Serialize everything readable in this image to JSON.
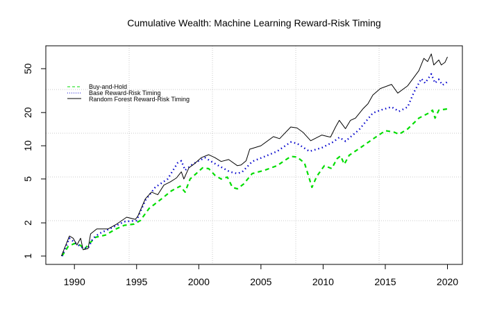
{
  "chart_data": {
    "type": "line",
    "title": "Cumulative Wealth: Machine Learning Reward-Risk Timing",
    "xlabel": "",
    "ylabel": "",
    "xlim": [
      1987.7,
      2021.2
    ],
    "ylim": [
      0.84,
      80.6
    ],
    "y_scale": "log",
    "x_ticks": [
      1990,
      1995,
      2000,
      2005,
      2010,
      2015,
      2020
    ],
    "y_ticks": [
      1,
      2,
      5,
      10,
      20,
      50
    ],
    "grid": true,
    "legend_position": "top-left",
    "series": [
      {
        "name": "Buy-and-Hold",
        "color": "#00dd00",
        "style": "dashed",
        "x": [
          1989.0,
          1989.5,
          1990.0,
          1990.5,
          1990.8,
          1991.2,
          1991.7,
          1992.5,
          1993.3,
          1994.0,
          1994.8,
          1995.3,
          1996.0,
          1997.0,
          1997.8,
          1998.5,
          1998.9,
          1999.3,
          1999.8,
          2000.3,
          2000.8,
          2001.3,
          2001.8,
          2002.3,
          2002.7,
          2003.1,
          2003.6,
          2004.3,
          2005.3,
          2006.3,
          2007.4,
          2007.9,
          2008.5,
          2008.9,
          2009.1,
          2009.5,
          2010.1,
          2010.7,
          2011.1,
          2011.4,
          2011.7,
          2012.1,
          2013.0,
          2014.0,
          2015.0,
          2015.7,
          2016.1,
          2016.8,
          2017.7,
          2018.5,
          2018.8,
          2019.0,
          2019.3,
          2020.0
        ],
        "y": [
          1.0,
          1.22,
          1.3,
          1.25,
          1.15,
          1.3,
          1.48,
          1.55,
          1.75,
          1.9,
          1.95,
          2.1,
          2.7,
          3.3,
          3.9,
          4.3,
          3.8,
          5.0,
          5.6,
          6.3,
          6.2,
          5.4,
          5.0,
          5.2,
          4.2,
          4.07,
          4.5,
          5.6,
          6.0,
          6.6,
          8.0,
          7.9,
          7.0,
          5.0,
          4.2,
          5.3,
          6.6,
          6.2,
          7.6,
          8.1,
          6.8,
          8.2,
          9.6,
          11.5,
          13.7,
          13.3,
          12.7,
          14.2,
          17.8,
          19.8,
          21.0,
          17.8,
          21.0,
          21.6
        ]
      },
      {
        "name": "Base Reward-Risk Timing",
        "color": "#0000cc",
        "style": "dotted",
        "x": [
          1989.0,
          1989.6,
          1990.2,
          1990.7,
          1991.1,
          1991.5,
          1992.0,
          1993.0,
          1994.0,
          1995.0,
          1995.7,
          1996.5,
          1997.5,
          1998.3,
          1998.6,
          1998.9,
          1999.5,
          2000.0,
          2000.5,
          2001.0,
          2001.8,
          2002.5,
          2003.1,
          2003.5,
          2004.3,
          2005.2,
          2006.3,
          2007.4,
          2007.9,
          2008.9,
          2009.9,
          2010.8,
          2011.3,
          2011.8,
          2012.9,
          2014.0,
          2014.6,
          2015.5,
          2016.1,
          2016.8,
          2017.3,
          2017.9,
          2018.2,
          2018.7,
          2019.0,
          2019.3,
          2019.6,
          2020.0
        ],
        "y": [
          1.0,
          1.45,
          1.28,
          1.18,
          1.18,
          1.45,
          1.6,
          1.8,
          2.05,
          2.1,
          3.2,
          4.2,
          5.0,
          7.0,
          7.3,
          6.0,
          6.8,
          7.3,
          7.8,
          7.2,
          6.4,
          5.8,
          5.6,
          5.8,
          7.2,
          7.9,
          8.9,
          10.8,
          10.5,
          8.9,
          9.6,
          10.8,
          11.9,
          11.0,
          14.0,
          19.8,
          21.0,
          22.5,
          20.5,
          22.5,
          30.5,
          40.6,
          37.0,
          44.7,
          37.0,
          40.0,
          35.5,
          38.0
        ]
      },
      {
        "name": "Random Forest Reward-Risk Timing",
        "color": "#000000",
        "style": "solid",
        "x": [
          1988.95,
          1989.6,
          1989.9,
          1990.2,
          1990.5,
          1990.7,
          1991.1,
          1991.3,
          1991.8,
          1992.7,
          1993.4,
          1994.2,
          1994.9,
          1995.1,
          1995.7,
          1996.2,
          1996.7,
          1997.2,
          1997.7,
          1998.2,
          1998.6,
          1998.8,
          1999.2,
          1999.6,
          2000.2,
          2000.8,
          2001.3,
          2001.8,
          2002.4,
          2003.1,
          2003.4,
          2003.8,
          2004.1,
          2005.0,
          2006.0,
          2006.5,
          2007.4,
          2007.9,
          2008.4,
          2009.0,
          2009.9,
          2010.4,
          2010.6,
          2011.0,
          2011.3,
          2011.8,
          2012.2,
          2012.6,
          2013.2,
          2013.6,
          2014.0,
          2014.6,
          2015.5,
          2016.0,
          2016.8,
          2017.7,
          2018.1,
          2018.4,
          2018.7,
          2018.9,
          2019.3,
          2019.5,
          2019.8,
          2020.0
        ],
        "y": [
          1.0,
          1.52,
          1.45,
          1.26,
          1.45,
          1.14,
          1.17,
          1.59,
          1.76,
          1.76,
          1.95,
          2.25,
          2.15,
          2.3,
          3.3,
          3.8,
          3.6,
          4.4,
          4.7,
          5.1,
          5.8,
          5.0,
          6.3,
          6.8,
          7.8,
          8.3,
          7.8,
          7.2,
          7.5,
          6.6,
          6.7,
          7.3,
          9.3,
          10.0,
          12.1,
          11.6,
          14.8,
          14.5,
          13.2,
          11.1,
          12.5,
          12.1,
          12.0,
          14.8,
          17.0,
          14.3,
          17.0,
          17.8,
          21.6,
          24.0,
          28.8,
          33.0,
          36.0,
          30.0,
          35.0,
          48.0,
          62.0,
          58.0,
          68.0,
          54.0,
          60.0,
          54.0,
          57.0,
          64.0
        ]
      }
    ]
  }
}
